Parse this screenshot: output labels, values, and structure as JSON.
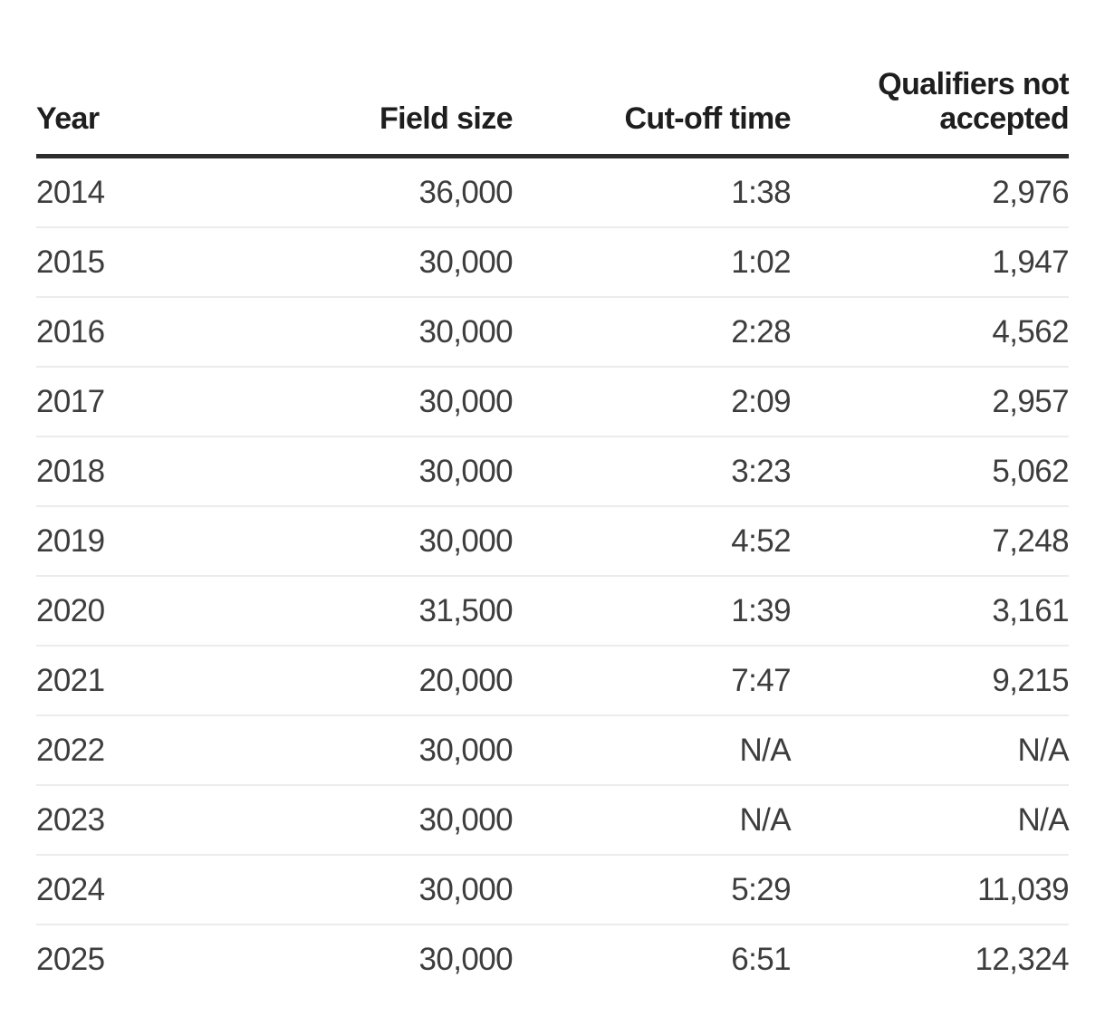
{
  "colors": {
    "background": "#ffffff",
    "header_text": "#1e1e1e",
    "body_text": "#3d3d3d",
    "header_rule": "#2d2d2d",
    "row_divider": "#ececec"
  },
  "chart_data": {
    "type": "table",
    "title": "",
    "columns": [
      {
        "key": "year",
        "label": "Year",
        "align": "left"
      },
      {
        "key": "field_size",
        "label": "Field size",
        "align": "right"
      },
      {
        "key": "cutoff_time",
        "label": "Cut-off time",
        "align": "right"
      },
      {
        "key": "qualifiers_not_accepted",
        "label": "Qualifiers not accepted",
        "align": "right"
      }
    ],
    "rows": [
      [
        "2014",
        "36,000",
        "1:38",
        "2,976"
      ],
      [
        "2015",
        "30,000",
        "1:02",
        "1,947"
      ],
      [
        "2016",
        "30,000",
        "2:28",
        "4,562"
      ],
      [
        "2017",
        "30,000",
        "2:09",
        "2,957"
      ],
      [
        "2018",
        "30,000",
        "3:23",
        "5,062"
      ],
      [
        "2019",
        "30,000",
        "4:52",
        "7,248"
      ],
      [
        "2020",
        "31,500",
        "1:39",
        "3,161"
      ],
      [
        "2021",
        "20,000",
        "7:47",
        "9,215"
      ],
      [
        "2022",
        "30,000",
        "N/A",
        "N/A"
      ],
      [
        "2023",
        "30,000",
        "N/A",
        "N/A"
      ],
      [
        "2024",
        "30,000",
        "5:29",
        "11,039"
      ],
      [
        "2025",
        "30,000",
        "6:51",
        "12,324"
      ]
    ]
  }
}
